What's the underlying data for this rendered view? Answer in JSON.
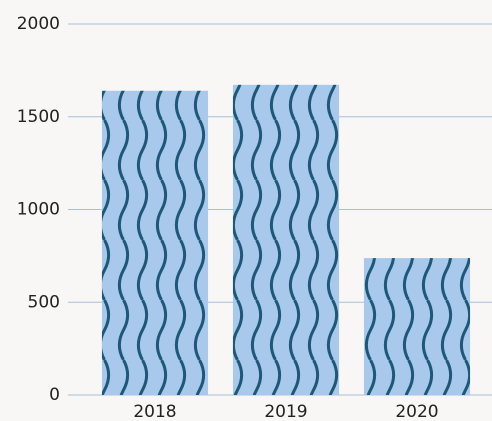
{
  "chart_data": {
    "type": "bar",
    "categories": [
      "2018",
      "2019",
      "2020"
    ],
    "values": [
      1640,
      1672,
      738
    ],
    "color": "#a8c8ec",
    "pattern_color": "#1d5878",
    "ylim": [
      0,
      2000
    ],
    "yticks": [
      0,
      500,
      1000,
      1500,
      2000
    ],
    "grid": true
  }
}
